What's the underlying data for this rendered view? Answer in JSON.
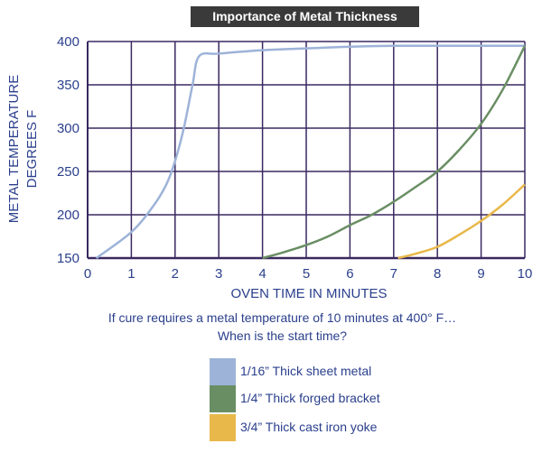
{
  "chart_data": {
    "type": "line",
    "title": "Importance of Metal Thickness",
    "xlabel": "OVEN TIME IN MINUTES",
    "ylabel": [
      "METAL TEMPERATURE",
      "DEGREES F"
    ],
    "xlim": [
      0,
      10
    ],
    "ylim": [
      150,
      400
    ],
    "xticks": [
      0,
      1,
      2,
      3,
      4,
      5,
      6,
      7,
      8,
      9,
      10
    ],
    "yticks": [
      150,
      200,
      250,
      300,
      350,
      400
    ],
    "grid": true,
    "legend_position": "bottom",
    "series": [
      {
        "name": "1/16” Thick sheet metal",
        "color": "#9db3d8",
        "x": [
          0.2,
          1.0,
          1.5,
          1.8,
          2.0,
          2.2,
          2.4,
          2.55,
          3,
          4,
          5,
          6,
          7,
          8,
          9,
          10
        ],
        "y": [
          150,
          180,
          210,
          235,
          262,
          300,
          350,
          383,
          386,
          390,
          392,
          394,
          395,
          395,
          395,
          395
        ]
      },
      {
        "name": "1/4” Thick forged bracket",
        "color": "#6a8e64",
        "x": [
          4.0,
          4.5,
          5.0,
          5.5,
          6.0,
          6.5,
          7.0,
          7.5,
          8.0,
          8.5,
          9.0,
          9.5,
          10.0
        ],
        "y": [
          150,
          157,
          165,
          175,
          188,
          200,
          215,
          232,
          250,
          275,
          305,
          345,
          395
        ]
      },
      {
        "name": "3/4” Thick cast iron yoke",
        "color": "#e8b84a",
        "x": [
          7.1,
          7.5,
          8.0,
          8.5,
          9.0,
          9.5,
          10.0
        ],
        "y": [
          150,
          155,
          163,
          177,
          193,
          212,
          235
        ]
      }
    ]
  },
  "caption": {
    "line1": "If cure requires a metal temperature of 10 minutes at 400° F…",
    "line2": "When is the start time?"
  },
  "colors": {
    "grid": "#3a2860",
    "text": "#2a3f8c",
    "title_bg": "#3a3a3a"
  }
}
